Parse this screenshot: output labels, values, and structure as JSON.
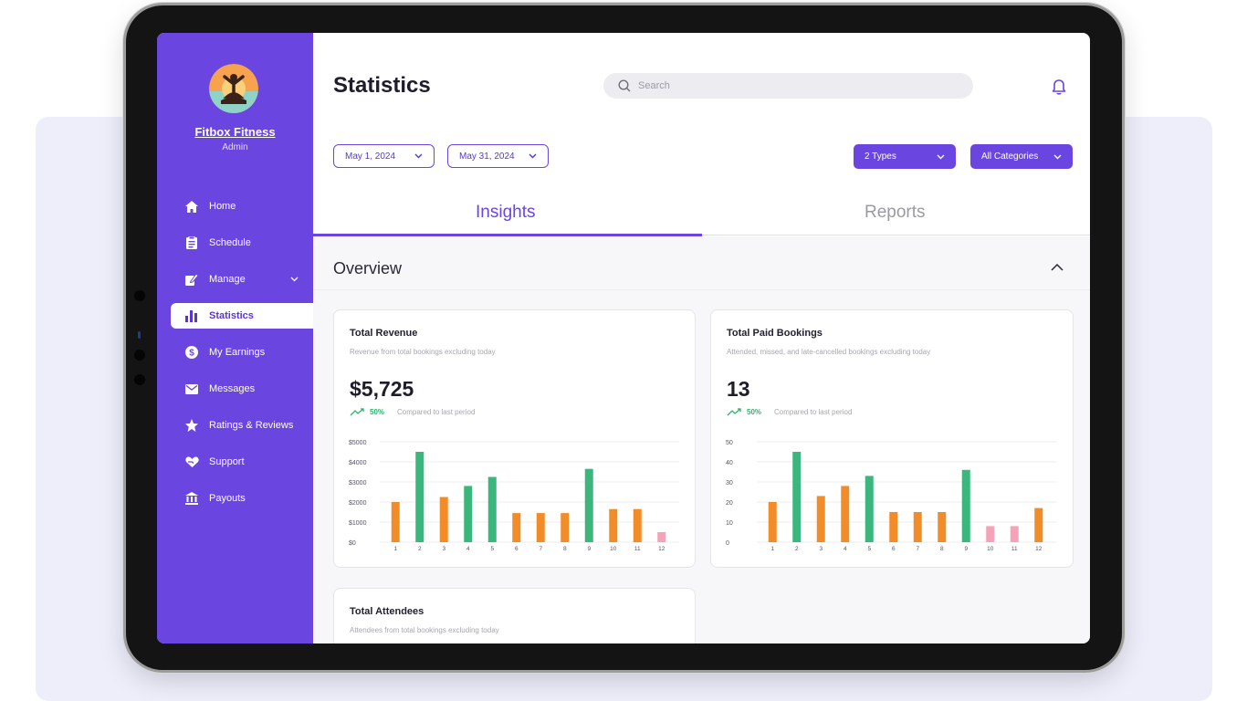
{
  "brand": {
    "name": "Fitbox Fitness",
    "role": "Admin"
  },
  "sidebar": {
    "items": [
      {
        "label": "Home",
        "icon": "home-icon"
      },
      {
        "label": "Schedule",
        "icon": "clipboard-icon"
      },
      {
        "label": "Manage",
        "icon": "edit-icon",
        "has_submenu": true
      },
      {
        "label": "Statistics",
        "icon": "bar-chart-icon",
        "active": true
      },
      {
        "label": "My Earnings",
        "icon": "dollar-icon"
      },
      {
        "label": "Messages",
        "icon": "mail-icon"
      },
      {
        "label": "Ratings & Reviews",
        "icon": "star-icon"
      },
      {
        "label": "Support",
        "icon": "heart-hand-icon"
      },
      {
        "label": "Payouts",
        "icon": "bank-icon"
      }
    ]
  },
  "header": {
    "title": "Statistics",
    "search_placeholder": "Search"
  },
  "filters": {
    "start_date": "May 1, 2024",
    "end_date": "May 31, 2024",
    "types": "2 Types",
    "categories": "All Categories"
  },
  "tabs": [
    {
      "label": "Insights",
      "active": true
    },
    {
      "label": "Reports",
      "active": false
    }
  ],
  "overview": {
    "title": "Overview"
  },
  "colors": {
    "accent": "#6b45e0",
    "bar_orange": "#f28c28",
    "bar_green": "#3bb77e",
    "bar_pink": "#f5a3b8",
    "trend_green": "#2fb36d"
  },
  "cards": [
    {
      "title": "Total Revenue",
      "subtitle": "Revenue from total bookings excluding today",
      "value": "$5,725",
      "change": "50%",
      "change_label": "Compared to last period"
    },
    {
      "title": "Total Paid Bookings",
      "subtitle": "Attended, missed, and late-cancelled bookings excluding today",
      "value": "13",
      "change": "50%",
      "change_label": "Compared to last period"
    },
    {
      "title": "Total Attendees",
      "subtitle": "Attendees from total bookings excluding today"
    }
  ],
  "chart_data": [
    {
      "type": "bar",
      "categories": [
        "1",
        "2",
        "3",
        "4",
        "5",
        "6",
        "7",
        "8",
        "9",
        "10",
        "11",
        "12"
      ],
      "values": [
        2000,
        4500,
        2250,
        2800,
        3250,
        1450,
        1450,
        1450,
        3650,
        1650,
        1650,
        500
      ],
      "bar_colors": [
        "orange",
        "green",
        "orange",
        "green",
        "green",
        "orange",
        "orange",
        "orange",
        "green",
        "orange",
        "orange",
        "pink"
      ],
      "yticks": [
        "$0",
        "$1000",
        "$2000",
        "$3000",
        "$4000",
        "$5000"
      ],
      "ylim": [
        0,
        5000
      ],
      "grid": true
    },
    {
      "type": "bar",
      "categories": [
        "1",
        "2",
        "3",
        "4",
        "5",
        "6",
        "7",
        "8",
        "9",
        "10",
        "11",
        "12"
      ],
      "values": [
        20,
        45,
        23,
        28,
        33,
        15,
        15,
        15,
        36,
        8,
        8,
        17
      ],
      "bar_colors": [
        "orange",
        "green",
        "orange",
        "orange",
        "green",
        "orange",
        "orange",
        "orange",
        "green",
        "pink",
        "pink",
        "orange"
      ],
      "yticks": [
        "0",
        "10",
        "20",
        "30",
        "40",
        "50"
      ],
      "ylim": [
        0,
        50
      ],
      "grid": true
    }
  ]
}
